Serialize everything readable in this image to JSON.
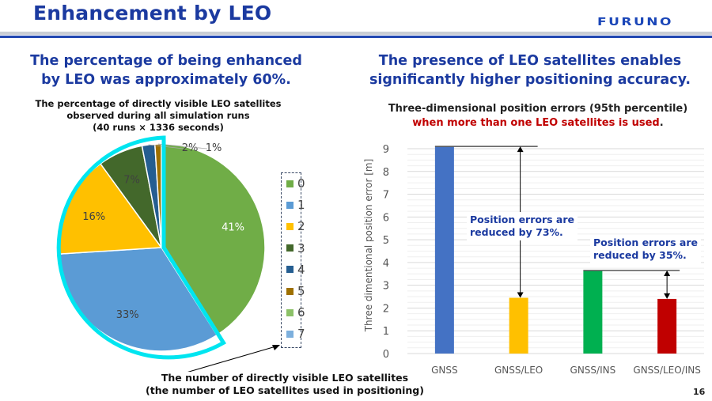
{
  "slide": {
    "title": "Enhancement by LEO",
    "logo": "FURUNO",
    "page_number": "16",
    "left_headline": [
      "The percentage of being enhanced",
      "by LEO was approximately 60%."
    ],
    "right_headline": [
      "The presence of LEO satellites enables",
      "significantly higher positioning accuracy."
    ],
    "pie_caption": [
      "The number of directly visible LEO satellites",
      "(the number of LEO satellites used in positioning)"
    ],
    "callout_1": [
      "Position errors are",
      "reduced by 73%."
    ],
    "callout_2": [
      "Position errors are",
      "reduced by 35%."
    ]
  },
  "chart_data": [
    {
      "type": "pie",
      "title": [
        "The percentage of directly visible LEO satellites",
        "observed during all simulation runs",
        "(40 runs × 1336 seconds)"
      ],
      "categories": [
        "0",
        "1",
        "2",
        "3",
        "4",
        "5",
        "6",
        "7"
      ],
      "values": [
        41,
        33,
        16,
        7,
        2,
        1,
        0,
        0
      ],
      "labels": [
        "41%",
        "33%",
        "16%",
        "7%",
        "2%",
        "1%",
        "",
        ""
      ],
      "colors": [
        "#70ad47",
        "#5b9bd5",
        "#ffc000",
        "#43682b",
        "#255e91",
        "#9e7000",
        "#8cc168",
        "#7cafdd"
      ],
      "highlight": "categories 1-7 outlined (LEO-enhanced, ~60%)",
      "highlight_color": "#00e5f0",
      "legend_position": "right"
    },
    {
      "type": "bar",
      "title": "Three-dimensional position errors (95th percentile)",
      "subtitle": "when more than one LEO satellites is used",
      "subtitle_suffix": ".",
      "categories": [
        "GNSS",
        "GNSS/LEO",
        "GNSS/INS",
        "GNSS/LEO/INS"
      ],
      "values": [
        9.1,
        2.45,
        3.65,
        2.4
      ],
      "colors": [
        "#4472c4",
        "#ffc000",
        "#00b050",
        "#c00000"
      ],
      "xlabel": "",
      "ylabel": "Three dimentional position error [m]",
      "ylim": [
        0,
        9
      ],
      "yticks": [
        0,
        1,
        2,
        3,
        4,
        5,
        6,
        7,
        8,
        9
      ],
      "grid": true,
      "annotations": [
        {
          "from": "GNSS",
          "to": "GNSS/LEO",
          "text": "Position errors are reduced by 73%."
        },
        {
          "from": "GNSS/INS",
          "to": "GNSS/LEO/INS",
          "text": "Position errors are reduced by 35%."
        }
      ]
    }
  ]
}
